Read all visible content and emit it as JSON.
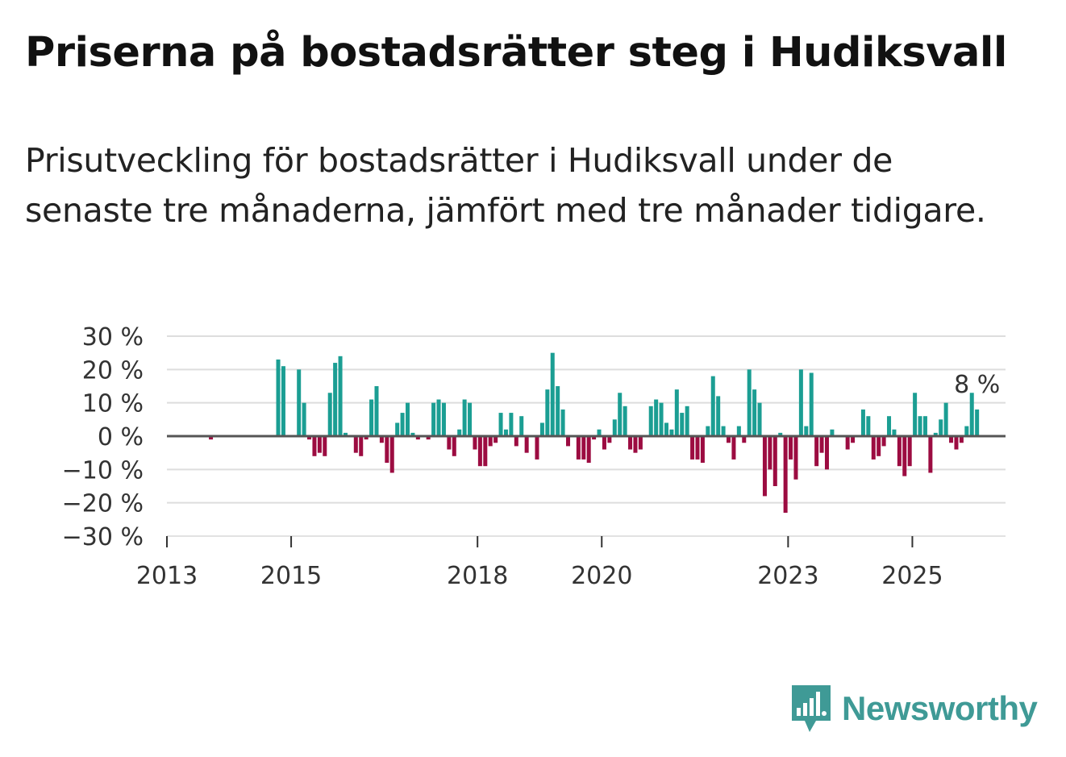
{
  "title": "Priserna på bostadsrätter steg i Hudiksvall",
  "subtitle": "Prisutveckling för bostadsrätter i Hudiksvall under de senaste tre månaderna, jämfört med tre månader tidigare.",
  "brand": "Newsworthy",
  "colors": {
    "positive": "#1b9e93",
    "negative": "#9c0c41",
    "grid": "#dddddd",
    "zero": "#555555",
    "brand": "#3f9a96"
  },
  "chart_data": {
    "type": "bar",
    "title": "Priserna på bostadsrätter steg i Hudiksvall",
    "ylabel": "",
    "ylim": [
      -30,
      30
    ],
    "yticks": [
      30,
      20,
      10,
      0,
      -10,
      -20,
      -30
    ],
    "ytick_labels": [
      "30 %",
      "20 %",
      "10 %",
      "0 %",
      "−10 %",
      "−20 %",
      "−30 %"
    ],
    "x_range": [
      2013.0,
      2026.5
    ],
    "xticks": [
      2013,
      2015,
      2018,
      2020,
      2023,
      2025
    ],
    "xtick_labels": [
      "2013",
      "2015",
      "2018",
      "2020",
      "2023",
      "2025"
    ],
    "x_start": 2013.0,
    "x_step": 0.08333,
    "last_value_label": "8 %",
    "values": [
      0,
      0,
      0,
      0,
      0,
      0,
      0,
      0,
      -1,
      0,
      0,
      0,
      0,
      0,
      0,
      0,
      0,
      0,
      0,
      0,
      0,
      23,
      21,
      0,
      0,
      20,
      10,
      -1,
      -6,
      -5,
      -6,
      13,
      22,
      24,
      1,
      0,
      -5,
      -6,
      -1,
      11,
      15,
      -2,
      -8,
      -11,
      4,
      7,
      10,
      1,
      -1,
      0,
      -1,
      10,
      11,
      10,
      -4,
      -6,
      2,
      11,
      10,
      -4,
      -9,
      -9,
      -3,
      -2,
      7,
      2,
      7,
      -3,
      6,
      -5,
      0,
      -7,
      4,
      14,
      25,
      15,
      8,
      -3,
      0,
      -7,
      -7,
      -8,
      -1,
      2,
      -4,
      -2,
      5,
      13,
      9,
      -4,
      -5,
      -4,
      0,
      9,
      11,
      10,
      4,
      2,
      14,
      7,
      9,
      -7,
      -7,
      -8,
      3,
      18,
      12,
      3,
      -2,
      -7,
      3,
      -2,
      20,
      14,
      10,
      -18,
      -10,
      -15,
      1,
      -23,
      -7,
      -13,
      20,
      3,
      19,
      -9,
      -5,
      -10,
      2,
      0,
      0,
      -4,
      -2,
      0,
      8,
      6,
      -7,
      -6,
      -3,
      6,
      2,
      -9,
      -12,
      -9,
      13,
      6,
      6,
      -11,
      1,
      5,
      10,
      -2,
      -4,
      -2,
      3,
      13,
      8
    ]
  }
}
